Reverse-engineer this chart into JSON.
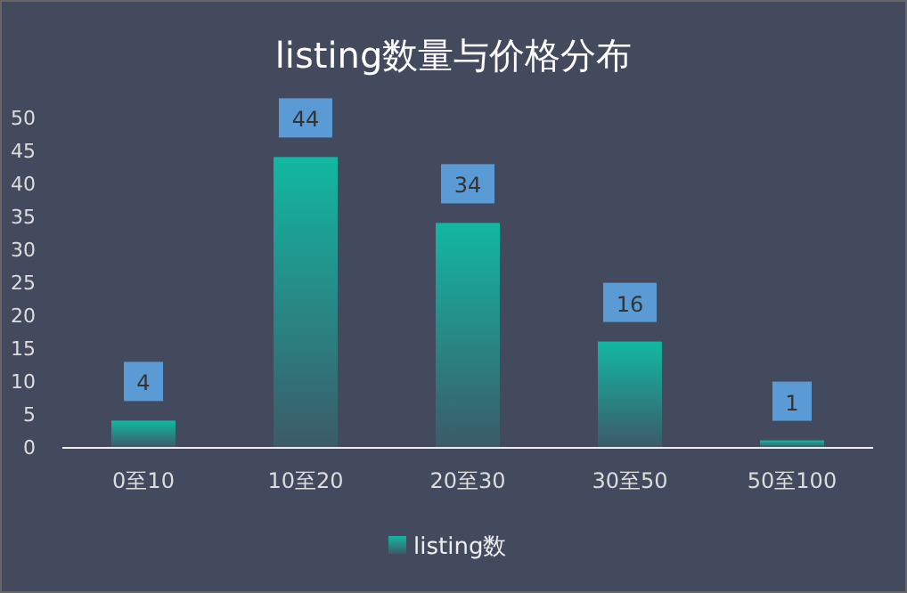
{
  "chart_data": {
    "type": "bar",
    "title": "listing数量与价格分布",
    "categories": [
      "0至10",
      "10至20",
      "20至30",
      "30至50",
      "50至100"
    ],
    "series": [
      {
        "name": "listing数",
        "color": "#12b8a2",
        "values": [
          4,
          44,
          34,
          16,
          1
        ]
      }
    ],
    "ylim": [
      0,
      50
    ],
    "yticks": [
      0,
      5,
      10,
      15,
      20,
      25,
      30,
      35,
      40,
      45,
      50
    ],
    "data_labels": true,
    "legend": "bottom"
  }
}
